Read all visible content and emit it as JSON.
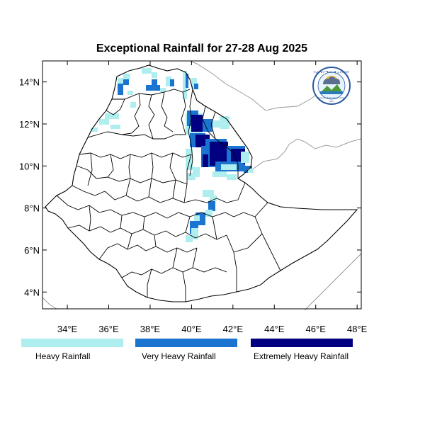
{
  "map": {
    "title": "Exceptional Rainfall for 27-28 Aug 2025",
    "x_ticks": [
      "34°E",
      "36°E",
      "38°E",
      "40°E",
      "42°E",
      "44°E",
      "46°E",
      "48°E"
    ],
    "y_ticks": [
      "14°N",
      "12°N",
      "10°N",
      "8°N",
      "6°N",
      "4°N"
    ],
    "lon_range": [
      32.8,
      48.2
    ],
    "lat_range": [
      3.2,
      15.0
    ],
    "colors": {
      "heavy": "#aeeeee",
      "very_heavy": "#1a74d0",
      "extremely_heavy": "#000080",
      "boundary": "#000000",
      "neighbor_border": "#9a9a9a"
    }
  },
  "legend": [
    {
      "label": "Heavy Rainfall",
      "color": "#aeeeee"
    },
    {
      "label": "Very Heavy Rainfall",
      "color": "#1a74d0"
    },
    {
      "label": "Extremely Heavy Rainfall",
      "color": "#000080"
    }
  ],
  "logo": {
    "top_text": "የኢትዮጵያ ሜትሮሎጂ ኢንስቲትዩት",
    "bottom_text": "Ethiopian Meteorology Institute",
    "small_text": "EMI"
  }
}
